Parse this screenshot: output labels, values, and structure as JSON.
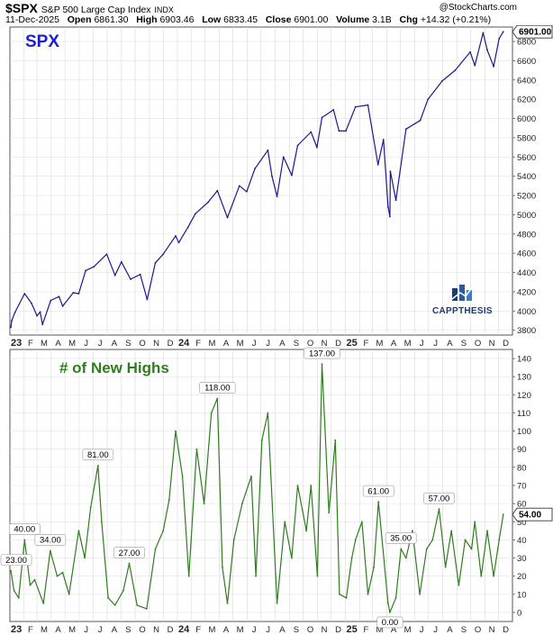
{
  "header": {
    "symbol": "$SPX",
    "name": "S&P 500 Large Cap Index",
    "exchange": "INDX",
    "watermark": "@StockCharts.com",
    "date": "11-Dec-2025",
    "open_label": "Open",
    "open": "6861.30",
    "high_label": "High",
    "high": "6903.46",
    "low_label": "Low",
    "low": "6833.45",
    "close_label": "Close",
    "close": "6901.00",
    "volume_label": "Volume",
    "volume": "3.1B",
    "chg_label": "Chg",
    "chg": "+14.32 (+0.21%)"
  },
  "logo": {
    "text": "CAPPTHESIS"
  },
  "x_axis": {
    "labels": [
      "23",
      "F",
      "M",
      "A",
      "M",
      "J",
      "J",
      "A",
      "S",
      "O",
      "N",
      "D",
      "24",
      "F",
      "M",
      "A",
      "M",
      "J",
      "J",
      "A",
      "S",
      "O",
      "N",
      "D",
      "25",
      "F",
      "M",
      "A",
      "M",
      "J",
      "J",
      "A",
      "S",
      "O",
      "N",
      "D"
    ]
  },
  "colors": {
    "price_line": "#1a1a8c",
    "highs_line": "#2e7d1e",
    "panel_label_1": "#1e1ecf",
    "panel_label_2": "#2e7d1e"
  },
  "chart_data": [
    {
      "type": "line",
      "title": "SPX",
      "series": [
        {
          "name": "",
          "x": [
            "2023-01-03",
            "2023-01-05",
            "2023-01-12",
            "2023-02-02",
            "2023-02-17",
            "2023-03-01",
            "2023-03-08",
            "2023-03-13",
            "2023-03-31",
            "2023-04-18",
            "2023-04-26",
            "2023-05-19",
            "2023-05-31",
            "2023-06-15",
            "2023-07-03",
            "2023-07-31",
            "2023-08-18",
            "2023-09-01",
            "2023-09-21",
            "2023-10-12",
            "2023-10-27",
            "2023-11-14",
            "2023-12-01",
            "2023-12-28",
            "2024-01-04",
            "2024-01-24",
            "2024-02-09",
            "2024-03-08",
            "2024-03-28",
            "2024-04-19",
            "2024-05-15",
            "2024-05-31",
            "2024-06-18",
            "2024-07-16",
            "2024-07-25",
            "2024-08-05",
            "2024-08-19",
            "2024-09-06",
            "2024-09-19",
            "2024-10-18",
            "2024-10-31",
            "2024-11-11",
            "2024-12-06",
            "2024-12-18",
            "2025-01-02",
            "2025-01-23",
            "2025-02-19",
            "2025-03-13",
            "2025-03-25",
            "2025-04-04",
            "2025-04-08",
            "2025-04-09",
            "2025-04-21",
            "2025-05-13",
            "2025-06-13",
            "2025-06-30",
            "2025-07-31",
            "2025-08-28",
            "2025-09-30",
            "2025-10-10",
            "2025-10-28",
            "2025-11-06",
            "2025-11-20",
            "2025-12-02",
            "2025-12-11"
          ],
          "values": [
            3830,
            3900,
            3985,
            4180,
            4080,
            3950,
            3990,
            3860,
            4110,
            4150,
            4050,
            4190,
            4180,
            4420,
            4460,
            4590,
            4370,
            4510,
            4330,
            4380,
            4120,
            4500,
            4590,
            4780,
            4710,
            4870,
            5010,
            5130,
            5250,
            4970,
            5300,
            5240,
            5480,
            5670,
            5400,
            5190,
            5600,
            5410,
            5720,
            5860,
            5700,
            6010,
            6090,
            5870,
            5870,
            6120,
            6140,
            5520,
            5780,
            5080,
            4980,
            5450,
            5150,
            5890,
            5980,
            6200,
            6390,
            6500,
            6690,
            6550,
            6890,
            6710,
            6540,
            6830,
            6901
          ]
        }
      ],
      "ylim": [
        3750,
        6950
      ],
      "yticks": [
        3800,
        4000,
        4200,
        4400,
        4600,
        4800,
        5000,
        5200,
        5400,
        5600,
        5800,
        6000,
        6200,
        6400,
        6600,
        6800
      ],
      "last_value_label": "6901.00"
    },
    {
      "type": "line",
      "title": "# of New Highs",
      "series": [
        {
          "name": "",
          "x": [
            "2023-01-03",
            "2023-01-10",
            "2023-01-20",
            "2023-02-02",
            "2023-02-14",
            "2023-02-24",
            "2023-03-15",
            "2023-03-30",
            "2023-04-14",
            "2023-04-26",
            "2023-05-10",
            "2023-05-31",
            "2023-06-13",
            "2023-06-26",
            "2023-07-12",
            "2023-07-20",
            "2023-08-03",
            "2023-08-18",
            "2023-09-05",
            "2023-09-18",
            "2023-10-05",
            "2023-10-26",
            "2023-11-14",
            "2023-12-01",
            "2023-12-14",
            "2023-12-28",
            "2024-01-12",
            "2024-01-26",
            "2024-02-12",
            "2024-02-28",
            "2024-03-15",
            "2024-03-28",
            "2024-04-08",
            "2024-04-19",
            "2024-05-03",
            "2024-05-21",
            "2024-06-10",
            "2024-06-20",
            "2024-07-03",
            "2024-07-16",
            "2024-08-05",
            "2024-08-22",
            "2024-09-06",
            "2024-09-19",
            "2024-10-08",
            "2024-10-18",
            "2024-11-01",
            "2024-11-11",
            "2024-11-26",
            "2024-12-10",
            "2024-12-19",
            "2025-01-03",
            "2025-01-15",
            "2025-01-23",
            "2025-02-06",
            "2025-02-19",
            "2025-03-04",
            "2025-03-14",
            "2025-04-04",
            "2025-04-08",
            "2025-04-21",
            "2025-05-02",
            "2025-05-13",
            "2025-05-27",
            "2025-06-12",
            "2025-06-27",
            "2025-07-10",
            "2025-07-24",
            "2025-08-07",
            "2025-08-20",
            "2025-09-05",
            "2025-09-19",
            "2025-10-03",
            "2025-10-10",
            "2025-10-24",
            "2025-11-06",
            "2025-11-20",
            "2025-12-02",
            "2025-12-11"
          ],
          "values": [
            23,
            12,
            8,
            40,
            15,
            18,
            5,
            34,
            20,
            22,
            10,
            45,
            30,
            58,
            81,
            50,
            8,
            4,
            12,
            27,
            4,
            2,
            35,
            45,
            62,
            100,
            75,
            20,
            90,
            60,
            110,
            118,
            25,
            5,
            40,
            60,
            75,
            20,
            95,
            110,
            5,
            50,
            30,
            70,
            45,
            70,
            20,
            137,
            55,
            95,
            10,
            8,
            30,
            40,
            50,
            10,
            25,
            61,
            5,
            0,
            8,
            35,
            30,
            45,
            10,
            35,
            40,
            57,
            25,
            45,
            15,
            40,
            35,
            50,
            20,
            45,
            20,
            40,
            54
          ]
        }
      ],
      "ylim": [
        -5,
        145
      ],
      "yticks": [
        0,
        10,
        20,
        30,
        40,
        50,
        60,
        70,
        80,
        90,
        100,
        110,
        120,
        130,
        140
      ],
      "annotations": [
        {
          "x": "2023-01-03",
          "label": "23.00"
        },
        {
          "x": "2023-02-02",
          "label": "40.00"
        },
        {
          "x": "2023-03-30",
          "label": "34.00"
        },
        {
          "x": "2023-07-12",
          "label": "81.00"
        },
        {
          "x": "2023-09-18",
          "label": "27.00"
        },
        {
          "x": "2024-03-28",
          "label": "118.00"
        },
        {
          "x": "2024-11-11",
          "label": "137.00"
        },
        {
          "x": "2025-03-14",
          "label": "61.00"
        },
        {
          "x": "2025-04-08",
          "label": "0.00"
        },
        {
          "x": "2025-05-02",
          "label": "35.00"
        },
        {
          "x": "2025-07-24",
          "label": "57.00"
        }
      ],
      "last_value_label": "54.00"
    }
  ]
}
